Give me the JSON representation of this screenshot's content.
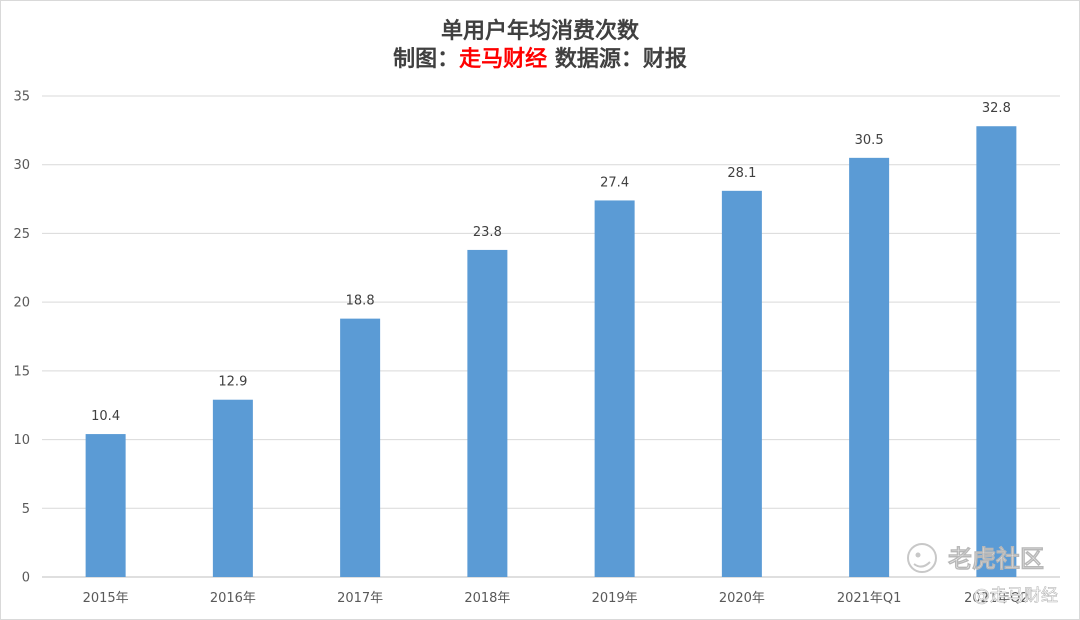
{
  "title_line1": "单用户年均消费次数",
  "title_line2_prefix": "制图：",
  "title_line2_brand": "走马财经",
  "title_line2_suffix": " 数据源：财报",
  "watermark": {
    "main": "老虎社区",
    "sub": "@走马财经"
  },
  "chart_data": {
    "type": "bar",
    "title": "单用户年均消费次数",
    "categories": [
      "2015年",
      "2016年",
      "2017年",
      "2018年",
      "2019年",
      "2020年",
      "2021年Q1",
      "2021年Q2"
    ],
    "values": [
      10.4,
      12.9,
      18.8,
      23.8,
      27.4,
      28.1,
      30.5,
      32.8
    ],
    "ylim": [
      0,
      35
    ],
    "yticks": [
      0,
      5,
      10,
      15,
      20,
      25,
      30,
      35
    ],
    "grid": true,
    "legend": "none",
    "bar_color": "#5b9bd5"
  }
}
